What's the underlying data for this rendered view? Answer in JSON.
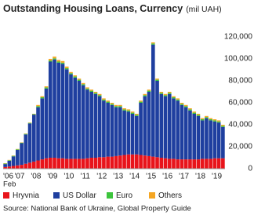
{
  "chart_data": {
    "type": "stacked-bar",
    "title": "Outstanding Housing Loans, Currency",
    "unit": "(mil UAH)",
    "source": "Source: National Bank of Ukraine, Global Property Guide",
    "first_category_note": "Feb",
    "categories": [
      "'06",
      null,
      null,
      null,
      "'07",
      null,
      null,
      null,
      "'08",
      null,
      null,
      null,
      "'09",
      null,
      null,
      null,
      "'10",
      null,
      null,
      null,
      "'11",
      null,
      null,
      null,
      "'12",
      null,
      null,
      null,
      "'13",
      null,
      null,
      null,
      "'14",
      null,
      null,
      null,
      "'15",
      null,
      null,
      null,
      "'16",
      null,
      null,
      null,
      "'17",
      null,
      null,
      null,
      "'18",
      null,
      null,
      null,
      "'19",
      null
    ],
    "series": [
      {
        "name": "Hryvnia",
        "color": "#e8141b",
        "values": [
          1500,
          2000,
          2500,
          3000,
          3500,
          4500,
          5500,
          6500,
          7500,
          8500,
          9500,
          10000,
          10000,
          9500,
          9500,
          9000,
          9000,
          9000,
          9000,
          9000,
          9500,
          10000,
          10000,
          10500,
          10500,
          11000,
          11000,
          11500,
          12000,
          12500,
          13000,
          13000,
          13000,
          12500,
          12000,
          11500,
          11000,
          10500,
          10000,
          9500,
          9000,
          9000,
          8500,
          8500,
          8500,
          8500,
          8500,
          8500,
          9000,
          9000,
          9000,
          9500,
          9500,
          9500
        ]
      },
      {
        "name": "US Dollar",
        "color": "#1f3f9f",
        "values": [
          2700,
          5200,
          8700,
          14200,
          19700,
          26700,
          35700,
          42700,
          48500,
          55500,
          63500,
          87500,
          89500,
          87000,
          86000,
          81500,
          77000,
          74000,
          71000,
          67000,
          62500,
          60000,
          58000,
          55500,
          51500,
          49000,
          47000,
          44500,
          44000,
          40500,
          39000,
          37000,
          35000,
          47500,
          54000,
          58500,
          102000,
          69500,
          58000,
          56500,
          59000,
          55000,
          53500,
          49500,
          47500,
          44500,
          41500,
          39500,
          35000,
          37000,
          35000,
          33500,
          32500,
          28500
        ]
      },
      {
        "name": "Euro",
        "color": "#3cc43c",
        "values": [
          500,
          500,
          500,
          500,
          500,
          500,
          500,
          500,
          1000,
          1000,
          1000,
          1000,
          1000,
          1000,
          1000,
          1000,
          1000,
          1000,
          1000,
          1000,
          1000,
          1000,
          1000,
          1000,
          1000,
          1000,
          1000,
          1000,
          1000,
          1000,
          1000,
          1000,
          1000,
          1000,
          1000,
          1000,
          1000,
          1000,
          1000,
          1000,
          1000,
          1000,
          1000,
          1000,
          1000,
          1000,
          1000,
          1000,
          1000,
          1000,
          1000,
          1000,
          1000,
          1000
        ]
      },
      {
        "name": "Others",
        "color": "#f5a623",
        "values": [
          300,
          300,
          300,
          300,
          300,
          300,
          300,
          300,
          1000,
          1000,
          1000,
          1500,
          1500,
          1500,
          1500,
          1500,
          1000,
          1000,
          1000,
          1000,
          1000,
          1000,
          1000,
          1000,
          1000,
          1000,
          1000,
          1000,
          1000,
          1000,
          1000,
          1000,
          1000,
          1000,
          1000,
          1000,
          1000,
          1000,
          1000,
          1000,
          1000,
          1000,
          1000,
          1000,
          1000,
          1000,
          1000,
          1000,
          1000,
          1000,
          1000,
          1000,
          1000,
          1000
        ]
      }
    ],
    "ylim": [
      0,
      120000
    ],
    "yticks": [
      0,
      {
        "value": 20000,
        "label": "20,000"
      },
      {
        "value": 40000,
        "label": "40,000"
      },
      {
        "value": 60000,
        "label": "60,000"
      },
      {
        "value": 80000,
        "label": "80,000"
      },
      {
        "value": 100000,
        "label": "100,000"
      },
      {
        "value": 120000,
        "label": "120,000"
      }
    ],
    "grid": false,
    "legend": "bottom"
  }
}
